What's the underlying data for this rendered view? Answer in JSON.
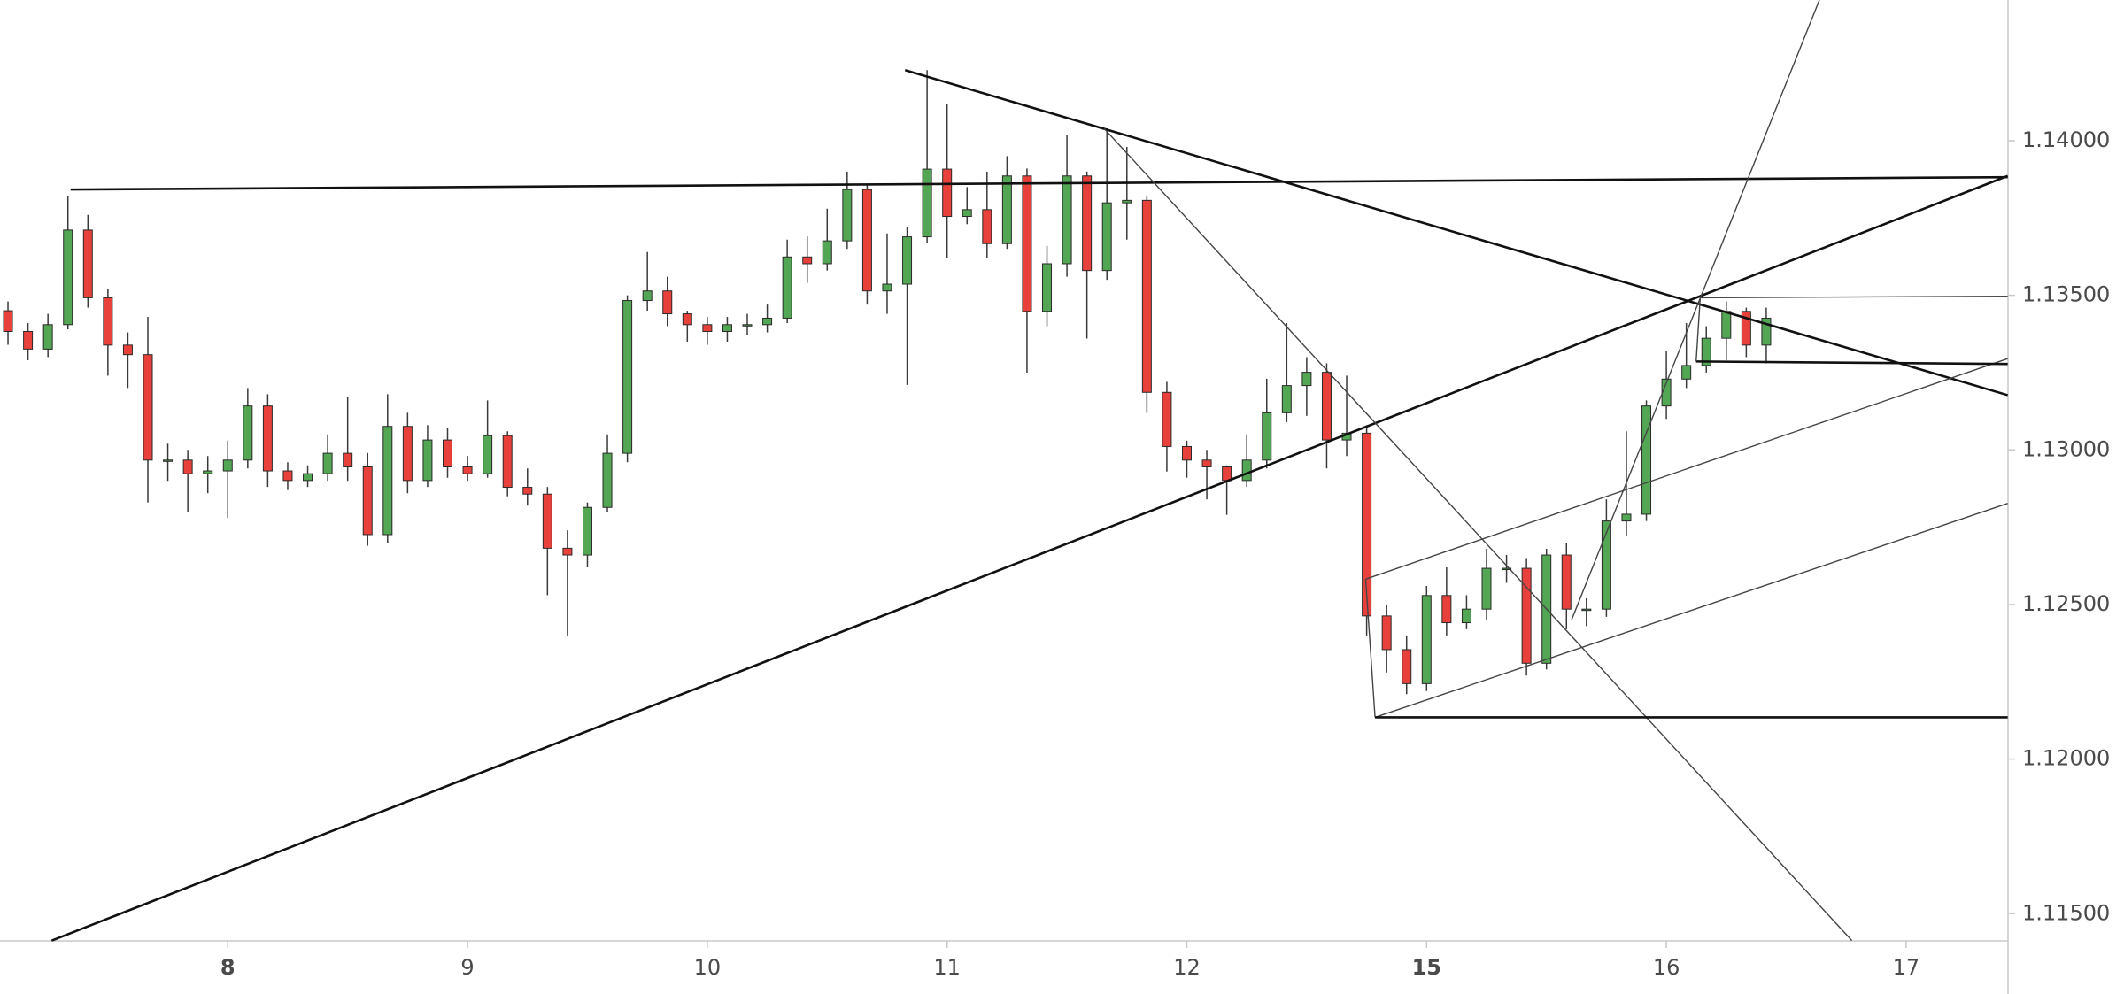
{
  "chart_data": {
    "type": "candlestick",
    "x": [
      -22,
      -20,
      -18,
      -16,
      -14,
      -12,
      -10,
      -8,
      -6,
      -4,
      -2,
      0,
      2,
      4,
      6,
      8,
      10,
      12,
      14,
      16,
      18,
      20,
      22,
      24,
      26,
      28,
      30,
      32,
      34,
      36,
      38,
      40,
      42,
      44,
      46,
      48,
      50,
      52,
      54,
      56,
      58,
      60,
      62,
      64,
      66,
      68,
      70,
      72,
      74,
      76,
      78,
      80,
      82,
      84,
      86,
      88,
      90,
      92,
      94,
      96,
      98,
      100,
      102,
      104,
      106,
      108,
      110,
      112,
      114,
      116,
      118,
      120,
      122,
      124,
      126,
      128,
      130,
      132,
      134,
      136,
      138,
      140,
      142,
      144,
      146,
      148,
      150,
      152,
      154
    ],
    "open": [
      1.1345,
      1.13383,
      1.13326,
      1.13405,
      1.13711,
      1.13492,
      1.13339,
      1.13308,
      1.12967,
      1.12967,
      1.12923,
      1.12932,
      1.12967,
      1.13142,
      1.12932,
      1.12901,
      1.12923,
      1.12989,
      1.12945,
      1.12726,
      1.13076,
      1.12901,
      1.13032,
      1.12945,
      1.12923,
      1.13046,
      1.12879,
      1.12857,
      1.12682,
      1.1266,
      1.12814,
      1.12989,
      1.13483,
      1.13514,
      1.1344,
      1.13405,
      1.13383,
      1.13405,
      1.13405,
      1.13426,
      1.13624,
      1.13602,
      1.13676,
      1.13842,
      1.13514,
      1.13536,
      1.13689,
      1.13908,
      1.13755,
      1.13777,
      1.13667,
      1.13886,
      1.13448,
      1.13602,
      1.13886,
      1.1358,
      1.13799,
      1.13807,
      1.13186,
      1.13011,
      1.12967,
      1.12945,
      1.12901,
      1.12967,
      1.1312,
      1.13208,
      1.13251,
      1.13032,
      1.13054,
      1.12463,
      1.12354,
      1.12244,
      1.12529,
      1.12441,
      1.12485,
      1.12617,
      1.12617,
      1.1231,
      1.1266,
      1.12485,
      1.12485,
      1.1277,
      1.12792,
      1.13142,
      1.13229,
      1.13273,
      1.13361,
      1.13448,
      1.13339
    ],
    "high": [
      1.1348,
      1.1341,
      1.1344,
      1.1382,
      1.1376,
      1.1352,
      1.1338,
      1.1343,
      1.1302,
      1.13,
      1.1298,
      1.1303,
      1.132,
      1.1318,
      1.1296,
      1.1295,
      1.1305,
      1.1317,
      1.1299,
      1.1318,
      1.1312,
      1.1308,
      1.1307,
      1.1298,
      1.1316,
      1.1306,
      1.1294,
      1.1288,
      1.1274,
      1.1283,
      1.1305,
      1.135,
      1.1364,
      1.1356,
      1.1345,
      1.1343,
      1.1343,
      1.1344,
      1.1347,
      1.1368,
      1.1369,
      1.1378,
      1.139,
      1.1386,
      1.137,
      1.1372,
      1.14228,
      1.1412,
      1.1385,
      1.139,
      1.1395,
      1.1391,
      1.1366,
      1.1402,
      1.139,
      1.1404,
      1.1398,
      1.1382,
      1.1322,
      1.1303,
      1.13,
      1.1295,
      1.1305,
      1.1323,
      1.1341,
      1.133,
      1.1328,
      1.1324,
      1.1308,
      1.125,
      1.124,
      1.1256,
      1.1262,
      1.1253,
      1.1268,
      1.1266,
      1.1265,
      1.1268,
      1.127,
      1.1252,
      1.1284,
      1.1306,
      1.1316,
      1.1332,
      1.1341,
      1.134,
      1.1348,
      1.1346,
      1.1346
    ],
    "low": [
      1.1334,
      1.1329,
      1.133,
      1.1339,
      1.1346,
      1.1324,
      1.132,
      1.1283,
      1.129,
      1.128,
      1.1286,
      1.1278,
      1.1294,
      1.1288,
      1.1287,
      1.1288,
      1.129,
      1.129,
      1.1269,
      1.127,
      1.1286,
      1.1288,
      1.1291,
      1.129,
      1.1291,
      1.1285,
      1.1282,
      1.1253,
      1.124,
      1.1262,
      1.128,
      1.1296,
      1.1345,
      1.134,
      1.1335,
      1.1334,
      1.1335,
      1.1337,
      1.1338,
      1.1341,
      1.1354,
      1.1358,
      1.1365,
      1.1347,
      1.1344,
      1.1321,
      1.1367,
      1.1362,
      1.1373,
      1.1362,
      1.1365,
      1.1325,
      1.134,
      1.1356,
      1.1336,
      1.1355,
      1.1368,
      1.1312,
      1.1293,
      1.1291,
      1.1284,
      1.1279,
      1.1288,
      1.1294,
      1.1309,
      1.1311,
      1.1294,
      1.1298,
      1.124,
      1.1228,
      1.1221,
      1.1222,
      1.124,
      1.1242,
      1.1245,
      1.1257,
      1.1227,
      1.1229,
      1.1242,
      1.1243,
      1.1246,
      1.1272,
      1.1277,
      1.131,
      1.132,
      1.1325,
      1.1329,
      1.133,
      1.1328
    ],
    "close": [
      1.13383,
      1.13326,
      1.13405,
      1.13711,
      1.13492,
      1.13339,
      1.13308,
      1.12967,
      1.12967,
      1.12923,
      1.12932,
      1.12967,
      1.13142,
      1.12932,
      1.12901,
      1.12923,
      1.12989,
      1.12945,
      1.12726,
      1.13076,
      1.12901,
      1.13032,
      1.12945,
      1.12923,
      1.13046,
      1.12879,
      1.12857,
      1.12682,
      1.1266,
      1.12814,
      1.12989,
      1.13483,
      1.13514,
      1.1344,
      1.13405,
      1.13383,
      1.13405,
      1.13405,
      1.13426,
      1.13624,
      1.13602,
      1.13676,
      1.13842,
      1.13514,
      1.13536,
      1.13689,
      1.13908,
      1.13755,
      1.13777,
      1.13667,
      1.13886,
      1.13448,
      1.13602,
      1.13886,
      1.1358,
      1.13799,
      1.13807,
      1.13186,
      1.13011,
      1.12967,
      1.12945,
      1.12901,
      1.12967,
      1.1312,
      1.13208,
      1.13251,
      1.13032,
      1.13054,
      1.12463,
      1.12354,
      1.12244,
      1.12529,
      1.12441,
      1.12485,
      1.12617,
      1.12617,
      1.1231,
      1.1266,
      1.12485,
      1.12485,
      1.1277,
      1.12792,
      1.13142,
      1.13229,
      1.13273,
      1.13361,
      1.13448,
      1.13339,
      1.13426
    ],
    "up_color": "#53a653",
    "down_color": "#e8413c",
    "xlim": [
      -22.8,
      178.2
    ],
    "ylim": [
      1.11412,
      1.14455
    ],
    "xticks": [
      {
        "value": 0,
        "label": "8",
        "bold": true
      },
      {
        "value": 24,
        "label": "9"
      },
      {
        "value": 48,
        "label": "10"
      },
      {
        "value": 72,
        "label": "11"
      },
      {
        "value": 96,
        "label": "12"
      },
      {
        "value": 120,
        "label": "15",
        "bold": true
      },
      {
        "value": 144,
        "label": "16"
      },
      {
        "value": 168,
        "label": "17"
      }
    ],
    "yticks": [
      {
        "value": 1.115,
        "label": "1.11500"
      },
      {
        "value": 1.12,
        "label": "1.12000"
      },
      {
        "value": 1.125,
        "label": "1.12500"
      },
      {
        "value": 1.13,
        "label": "1.13000"
      },
      {
        "value": 1.135,
        "label": "1.13500"
      },
      {
        "value": 1.14,
        "label": "1.14000"
      }
    ],
    "drawings": [
      {
        "style": "thick",
        "points": [
          [
            -15.73,
            1.13842
          ],
          [
            178.17,
            1.13882
          ]
        ]
      },
      {
        "style": "thick",
        "points": [
          [
            67.8,
            1.14228
          ],
          [
            178.17,
            1.13177
          ]
        ]
      },
      {
        "style": "thick",
        "points": [
          [
            -17.63,
            1.11413
          ],
          [
            178.17,
            1.13886
          ]
        ]
      },
      {
        "style": "thin",
        "points": [
          [
            87.73,
            1.14039
          ],
          [
            162.57,
            1.11413
          ]
        ]
      },
      {
        "style": "thin",
        "points": [
          [
            134.51,
            1.1245
          ],
          [
            159.32,
            1.14455
          ]
        ]
      },
      {
        "style": "thin",
        "points": [
          [
            113.9,
            1.12582
          ],
          [
            178.17,
            1.13295
          ]
        ]
      },
      {
        "style": "thin",
        "points": [
          [
            114.84,
            1.12135
          ],
          [
            178.17,
            1.12827
          ]
        ]
      },
      {
        "style": "thin",
        "points": [
          [
            113.9,
            1.12582
          ],
          [
            114.84,
            1.12135
          ]
        ]
      },
      {
        "style": "thick",
        "points": [
          [
            114.84,
            1.12135
          ],
          [
            178.17,
            1.12135
          ]
        ]
      },
      {
        "style": "thin",
        "points": [
          [
            147.39,
            1.13492
          ],
          [
            178.17,
            1.13497
          ]
        ]
      },
      {
        "style": "thick",
        "points": [
          [
            146.98,
            1.13286
          ],
          [
            178.17,
            1.13278
          ]
        ]
      },
      {
        "style": "thin",
        "points": [
          [
            147.39,
            1.13492
          ],
          [
            146.98,
            1.13286
          ]
        ]
      }
    ]
  }
}
